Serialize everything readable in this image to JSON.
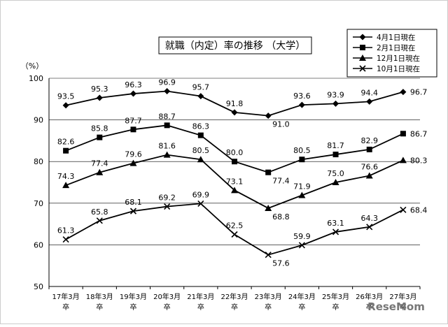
{
  "chart_data": {
    "type": "line",
    "title": "就職（内定）率の推移 （大学）",
    "ylabel": "（%）",
    "ylim": [
      50,
      100
    ],
    "yticks": [
      50,
      60,
      70,
      80,
      90,
      100
    ],
    "grid": true,
    "legend_position": "top-right",
    "categories": [
      [
        "17年3月",
        "卒"
      ],
      [
        "18年3月",
        "卒"
      ],
      [
        "19年3月",
        "卒"
      ],
      [
        "20年3月",
        "卒"
      ],
      [
        "21年3月",
        "卒"
      ],
      [
        "22年3月",
        "卒"
      ],
      [
        "23年3月",
        "卒"
      ],
      [
        "24年3月",
        "卒"
      ],
      [
        "25年3月",
        "卒"
      ],
      [
        "26年3月",
        "卒"
      ],
      [
        "27年3月",
        "卒"
      ]
    ],
    "series": [
      {
        "name": "4月1日現在",
        "marker": "diamond",
        "values": [
          93.5,
          95.3,
          96.3,
          96.9,
          95.7,
          91.8,
          91.0,
          93.6,
          93.9,
          94.4,
          96.7
        ],
        "labels": [
          "93.5",
          "95.3",
          "96.3",
          "96.9",
          "95.7",
          "91.8",
          "91.0",
          "93.6",
          "93.9",
          "94.4",
          "96.7"
        ]
      },
      {
        "name": "2月1日現在",
        "marker": "square",
        "values": [
          82.6,
          85.8,
          87.7,
          88.7,
          86.3,
          80.0,
          77.4,
          80.5,
          81.7,
          82.9,
          86.7
        ],
        "labels": [
          "82.6",
          "85.8",
          "87.7",
          "88.7",
          "86.3",
          "80.0",
          "77.4",
          "80.5",
          "81.7",
          "82.9",
          "86.7"
        ]
      },
      {
        "name": "12月1日現在",
        "marker": "triangle",
        "values": [
          74.3,
          77.4,
          79.6,
          81.6,
          80.5,
          73.1,
          68.8,
          71.9,
          75.0,
          76.6,
          80.3
        ],
        "labels": [
          "74.3",
          "77.4",
          "79.6",
          "81.6",
          "80.5",
          "73.1",
          "68.8",
          "71.9",
          "75.0",
          "76.6",
          "80.3"
        ]
      },
      {
        "name": "10月1日現在",
        "marker": "x",
        "values": [
          61.3,
          65.8,
          68.1,
          69.2,
          69.9,
          62.5,
          57.6,
          59.9,
          63.1,
          64.3,
          68.4
        ],
        "labels": [
          "61.3",
          "65.8",
          "68.1",
          "69.2",
          "69.9",
          "62.5",
          "57.6",
          "59.9",
          "63.1",
          "64.3",
          "68.4"
        ]
      }
    ]
  },
  "watermark": "ReseMom"
}
